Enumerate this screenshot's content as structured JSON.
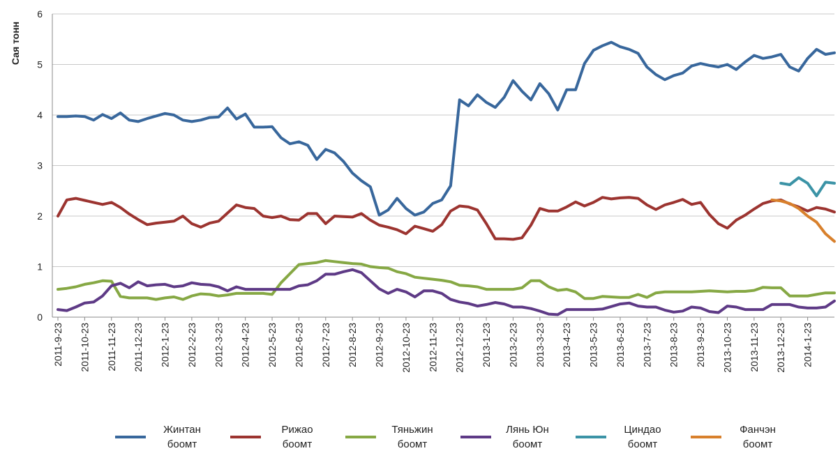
{
  "chart_data": {
    "type": "line",
    "y_label": "Сая тонн",
    "categories": [
      "2011-9-23",
      null,
      null,
      "2011-10-23",
      null,
      null,
      "2011-11-23",
      null,
      null,
      "2011-12-23",
      null,
      null,
      "2012-1-23",
      null,
      null,
      "2012-2-23",
      null,
      null,
      "2012-3-23",
      null,
      null,
      "2012-4-23",
      null,
      null,
      "2012-5-23",
      null,
      null,
      "2012-6-23",
      null,
      null,
      "2012-7-23",
      null,
      null,
      "2012-8-23",
      null,
      null,
      "2012-9-23",
      null,
      null,
      "2012-10-23",
      null,
      null,
      "2012-11-23",
      null,
      null,
      "2012-12-23",
      null,
      null,
      "2013-1-23",
      null,
      null,
      "2013-2-23",
      null,
      null,
      "2013-3-23",
      null,
      null,
      "2013-4-23",
      null,
      null,
      "2013-5-23",
      null,
      null,
      "2013-6-23",
      null,
      null,
      "2013-7-23",
      null,
      null,
      "2013-8-23",
      null,
      null,
      "2013-9-23",
      null,
      null,
      "2013-10-23",
      null,
      null,
      "2013-11-23",
      null,
      null,
      "2013-12-23",
      null,
      null,
      "2014-1-23",
      null,
      null,
      null
    ],
    "series": [
      {
        "name": "Жинтан боомт",
        "color": "#38679c",
        "values": [
          3.97,
          3.97,
          3.98,
          3.97,
          3.9,
          4.01,
          3.93,
          4.04,
          3.9,
          3.87,
          3.93,
          3.98,
          4.03,
          4.0,
          3.9,
          3.87,
          3.9,
          3.95,
          3.96,
          4.14,
          3.92,
          4.02,
          3.76,
          3.76,
          3.77,
          3.55,
          3.43,
          3.47,
          3.4,
          3.12,
          3.32,
          3.25,
          3.08,
          2.85,
          2.7,
          2.58,
          2.02,
          2.12,
          2.35,
          2.15,
          2.02,
          2.08,
          2.25,
          2.32,
          2.6,
          4.3,
          4.18,
          4.4,
          4.25,
          4.15,
          4.35,
          4.68,
          4.47,
          4.3,
          4.62,
          4.42,
          4.1,
          4.5,
          4.5,
          5.02,
          5.28,
          5.37,
          5.44,
          5.35,
          5.3,
          5.22,
          4.95,
          4.8,
          4.7,
          4.78,
          4.83,
          4.97,
          5.02,
          4.98,
          4.95,
          5.0,
          4.9,
          5.05,
          5.18,
          5.12,
          5.15,
          5.2,
          4.95,
          4.87,
          5.12,
          5.3,
          5.2,
          5.23
        ]
      },
      {
        "name": "Рижао боомт",
        "color": "#9c3430",
        "values": [
          2.0,
          2.32,
          2.35,
          2.31,
          2.27,
          2.23,
          2.27,
          2.17,
          2.04,
          1.93,
          1.83,
          1.86,
          1.88,
          1.9,
          2.0,
          1.85,
          1.78,
          1.86,
          1.9,
          2.06,
          2.22,
          2.17,
          2.15,
          2.0,
          1.97,
          2.0,
          1.93,
          1.92,
          2.05,
          2.05,
          1.85,
          2.0,
          1.99,
          1.98,
          2.05,
          1.92,
          1.82,
          1.78,
          1.73,
          1.65,
          1.8,
          1.75,
          1.7,
          1.83,
          2.1,
          2.2,
          2.18,
          2.12,
          1.85,
          1.55,
          1.55,
          1.54,
          1.57,
          1.82,
          2.15,
          2.1,
          2.1,
          2.18,
          2.28,
          2.2,
          2.27,
          2.37,
          2.34,
          2.36,
          2.37,
          2.35,
          2.22,
          2.13,
          2.22,
          2.27,
          2.33,
          2.23,
          2.27,
          2.03,
          1.85,
          1.76,
          1.92,
          2.02,
          2.14,
          2.25,
          2.3,
          2.32,
          2.24,
          2.18,
          2.1,
          2.17,
          2.14,
          2.08
        ]
      },
      {
        "name": "Тяньжин боомт",
        "color": "#86a844",
        "values": [
          0.55,
          0.57,
          0.6,
          0.65,
          0.68,
          0.72,
          0.71,
          0.41,
          0.38,
          0.38,
          0.38,
          0.35,
          0.38,
          0.4,
          0.35,
          0.42,
          0.46,
          0.45,
          0.42,
          0.44,
          0.47,
          0.47,
          0.47,
          0.47,
          0.45,
          0.68,
          0.86,
          1.04,
          1.06,
          1.08,
          1.12,
          1.1,
          1.08,
          1.06,
          1.05,
          1.0,
          0.98,
          0.97,
          0.9,
          0.86,
          0.79,
          0.77,
          0.75,
          0.73,
          0.7,
          0.63,
          0.62,
          0.6,
          0.55,
          0.55,
          0.55,
          0.55,
          0.58,
          0.72,
          0.72,
          0.6,
          0.53,
          0.55,
          0.5,
          0.37,
          0.37,
          0.41,
          0.4,
          0.39,
          0.39,
          0.45,
          0.39,
          0.48,
          0.5,
          0.5,
          0.5,
          0.5,
          0.51,
          0.52,
          0.51,
          0.5,
          0.51,
          0.51,
          0.53,
          0.59,
          0.58,
          0.58,
          0.42,
          0.42,
          0.42,
          0.45,
          0.48,
          0.48
        ]
      },
      {
        "name": "Лянь Юн боомт",
        "color": "#5e3a86",
        "values": [
          0.15,
          0.13,
          0.2,
          0.28,
          0.3,
          0.42,
          0.62,
          0.67,
          0.58,
          0.7,
          0.62,
          0.64,
          0.65,
          0.6,
          0.62,
          0.68,
          0.65,
          0.64,
          0.6,
          0.52,
          0.6,
          0.55,
          0.55,
          0.55,
          0.55,
          0.55,
          0.55,
          0.62,
          0.64,
          0.72,
          0.85,
          0.85,
          0.9,
          0.94,
          0.88,
          0.72,
          0.56,
          0.47,
          0.55,
          0.5,
          0.4,
          0.52,
          0.52,
          0.47,
          0.35,
          0.3,
          0.27,
          0.22,
          0.25,
          0.29,
          0.26,
          0.2,
          0.2,
          0.17,
          0.12,
          0.06,
          0.05,
          0.15,
          0.15,
          0.15,
          0.15,
          0.16,
          0.21,
          0.26,
          0.28,
          0.22,
          0.2,
          0.2,
          0.14,
          0.1,
          0.12,
          0.2,
          0.18,
          0.11,
          0.09,
          0.22,
          0.2,
          0.15,
          0.15,
          0.15,
          0.25,
          0.25,
          0.25,
          0.2,
          0.18,
          0.18,
          0.2,
          0.32
        ]
      },
      {
        "name": "Циндао боомт",
        "color": "#3b93a6",
        "values": [
          null,
          null,
          null,
          null,
          null,
          null,
          null,
          null,
          null,
          null,
          null,
          null,
          null,
          null,
          null,
          null,
          null,
          null,
          null,
          null,
          null,
          null,
          null,
          null,
          null,
          null,
          null,
          null,
          null,
          null,
          null,
          null,
          null,
          null,
          null,
          null,
          null,
          null,
          null,
          null,
          null,
          null,
          null,
          null,
          null,
          null,
          null,
          null,
          null,
          null,
          null,
          null,
          null,
          null,
          null,
          null,
          null,
          null,
          null,
          null,
          null,
          null,
          null,
          null,
          null,
          null,
          null,
          null,
          null,
          null,
          null,
          null,
          null,
          null,
          null,
          null,
          null,
          null,
          null,
          null,
          null,
          2.65,
          2.62,
          2.76,
          2.65,
          2.4,
          2.67,
          2.65
        ]
      },
      {
        "name": "Фанчэн боомт",
        "color": "#d8802c",
        "values": [
          null,
          null,
          null,
          null,
          null,
          null,
          null,
          null,
          null,
          null,
          null,
          null,
          null,
          null,
          null,
          null,
          null,
          null,
          null,
          null,
          null,
          null,
          null,
          null,
          null,
          null,
          null,
          null,
          null,
          null,
          null,
          null,
          null,
          null,
          null,
          null,
          null,
          null,
          null,
          null,
          null,
          null,
          null,
          null,
          null,
          null,
          null,
          null,
          null,
          null,
          null,
          null,
          null,
          null,
          null,
          null,
          null,
          null,
          null,
          null,
          null,
          null,
          null,
          null,
          null,
          null,
          null,
          null,
          null,
          null,
          null,
          null,
          null,
          null,
          null,
          null,
          null,
          null,
          null,
          null,
          2.32,
          2.3,
          2.25,
          2.15,
          2.0,
          1.88,
          1.65,
          1.5
        ]
      }
    ],
    "ylim": [
      0,
      6
    ],
    "yticks": [
      0,
      1,
      2,
      3,
      4,
      5,
      6
    ],
    "grid": true,
    "legend": "bottom"
  }
}
